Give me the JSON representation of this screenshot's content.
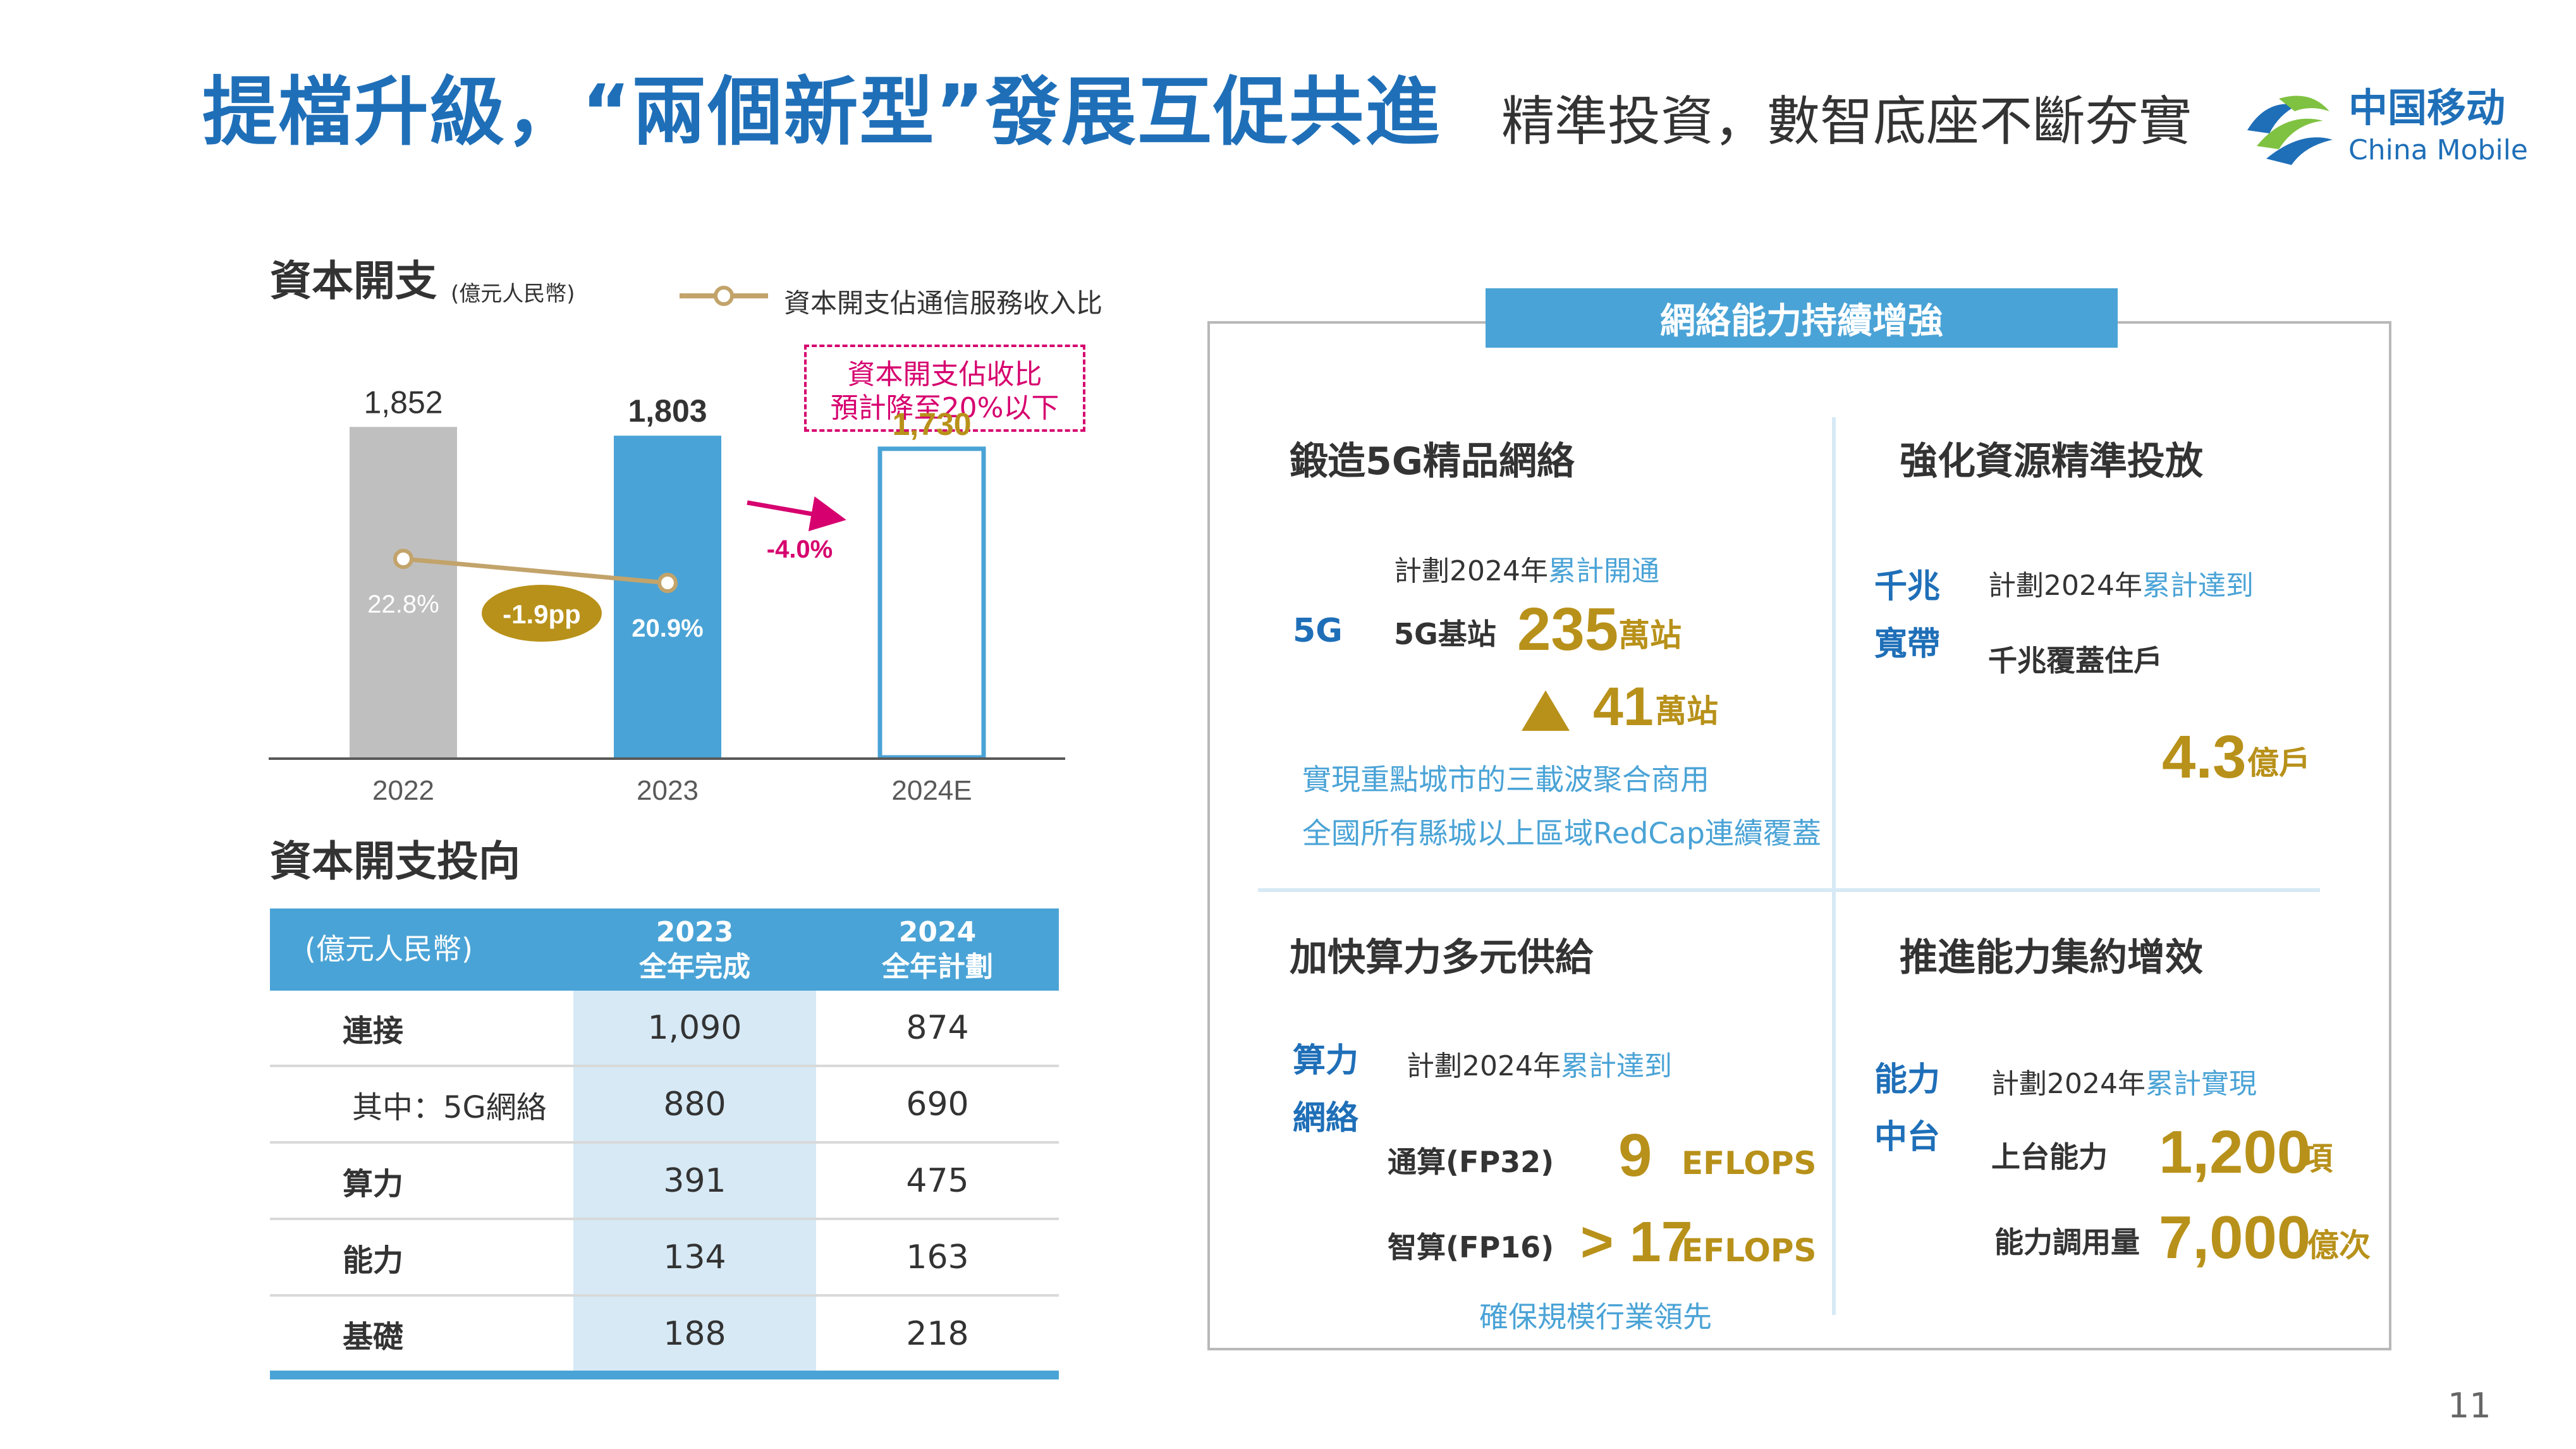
{
  "header": {
    "title": "提檔升級，“兩個新型”發展互促共進",
    "subtitle": "精準投資，數智底座不斷夯實",
    "logo_cn": "中国移动",
    "logo_en": "China Mobile"
  },
  "capex_chart": {
    "heading": "資本開支",
    "unit": "(億元人民幣)",
    "legend_label": "資本開支佔通信服務收入比",
    "callout_line1": "資本開支佔收比",
    "callout_line2": "預計降至20%以下",
    "change_pp": "-1.9pp",
    "change_pct": "-4.0%"
  },
  "chart_data": {
    "type": "bar",
    "categories": [
      "2022",
      "2023",
      "2024E"
    ],
    "values": [
      1852,
      1803,
      1730
    ],
    "value_labels": [
      "1,852",
      "1,803",
      "1,730"
    ],
    "ratio_series": {
      "name": "資本開支佔通信服務收入比",
      "values": [
        22.8,
        20.9
      ],
      "labels": [
        "22.8%",
        "20.9%"
      ]
    },
    "ylim": [
      0,
      2400
    ],
    "colors": {
      "2022": "#bfbfbf",
      "2023": "#4aa3d6",
      "2024E": "outline",
      "ratio_line": "#c2a36a"
    }
  },
  "capex_table": {
    "heading": "資本開支投向",
    "unit_header": "(億元人民幣)",
    "col_2023_line1": "2023",
    "col_2023_line2": "全年完成",
    "col_2024_line1": "2024",
    "col_2024_line2": "全年計劃",
    "rows": [
      {
        "label": "連接",
        "v2023": "1,090",
        "v2024": "874"
      },
      {
        "label": "其中：5G網絡",
        "v2023": "880",
        "v2024": "690"
      },
      {
        "label": "算力",
        "v2023": "391",
        "v2024": "475"
      },
      {
        "label": "能力",
        "v2023": "134",
        "v2024": "163"
      },
      {
        "label": "基礎",
        "v2023": "188",
        "v2024": "218"
      }
    ]
  },
  "panel": {
    "banner": "網絡能力持續增強",
    "q1": {
      "title": "鍛造5G精品網絡",
      "tag": "5G",
      "plan_prefix": "計劃2024年",
      "plan_hl": "累計開通",
      "item": "5G基站",
      "value": "235",
      "unit": "萬站",
      "delta": "41",
      "delta_unit": "萬站",
      "note1": "實現重點城市的三載波聚合商用",
      "note2": "全國所有縣城以上區域RedCap連續覆蓋"
    },
    "q2": {
      "title": "強化資源精準投放",
      "tag1": "千兆",
      "tag2": "寬帶",
      "plan_prefix": "計劃2024年",
      "plan_hl": "累計達到",
      "item": "千兆覆蓋住戶",
      "value": "4.3",
      "unit": "億戶"
    },
    "q3": {
      "title": "加快算力多元供給",
      "tag1": "算力",
      "tag2": "網絡",
      "plan_prefix": "計劃2024年",
      "plan_hl": "累計達到",
      "item1": "通算(FP32)",
      "value1": "9",
      "unit1": "EFLOPS",
      "item2": "智算(FP16)",
      "value2": "> 17",
      "unit2": "EFLOPS",
      "note": "確保規模行業領先"
    },
    "q4": {
      "title": "推進能力集約增效",
      "tag1": "能力",
      "tag2": "中台",
      "plan_prefix": "計劃2024年",
      "plan_hl": "累計實現",
      "item1": "上台能力",
      "value1": "1,200",
      "unit1": "項",
      "item2": "能力調用量",
      "value2": "7,000",
      "unit2": "億次"
    }
  },
  "page_number": "11"
}
